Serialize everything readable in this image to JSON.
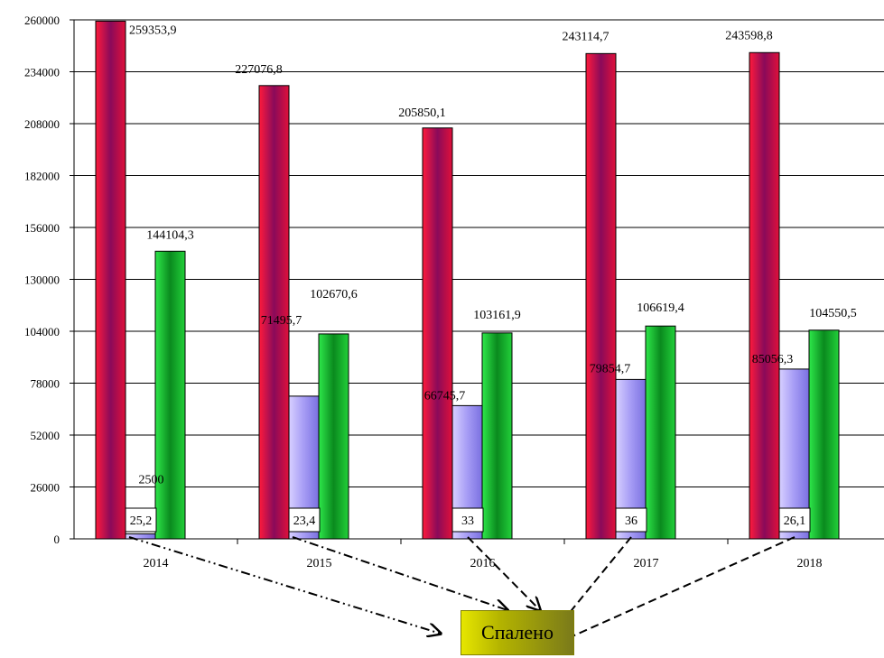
{
  "chart_data": {
    "type": "bar",
    "categories": [
      "2014",
      "2015",
      "2016",
      "2017",
      "2018"
    ],
    "series": [
      {
        "values": [
          259353.9,
          227076.8,
          205850.1,
          243114.7,
          243598.8
        ],
        "color": "#c8103c"
      },
      {
        "values": [
          2500,
          71495.7,
          66745.7,
          79854.7,
          85056.3
        ],
        "color": "#aaa0ff"
      },
      {
        "values": [
          144104.3,
          102670.6,
          103161.9,
          106619.4,
          104550.5
        ],
        "color": "#12b12a"
      }
    ],
    "value_labels": [
      [
        "259353,9",
        "227076,8",
        "205850,1",
        "243114,7",
        "243598,8"
      ],
      [
        "2500",
        "71495,7",
        "66745,7",
        "79854,7",
        "85056,3"
      ],
      [
        "144104,3",
        "102670,6",
        "103161,9",
        "106619,4",
        "104550,5"
      ]
    ],
    "yticks": [
      0,
      26000,
      52000,
      78000,
      104000,
      130000,
      156000,
      182000,
      208000,
      234000,
      260000
    ],
    "ylim": [
      0,
      260000
    ],
    "burned_labels": [
      "25,2",
      "23,4",
      "33",
      "36",
      "26,1"
    ],
    "grid": true,
    "callout": "Спалено"
  }
}
